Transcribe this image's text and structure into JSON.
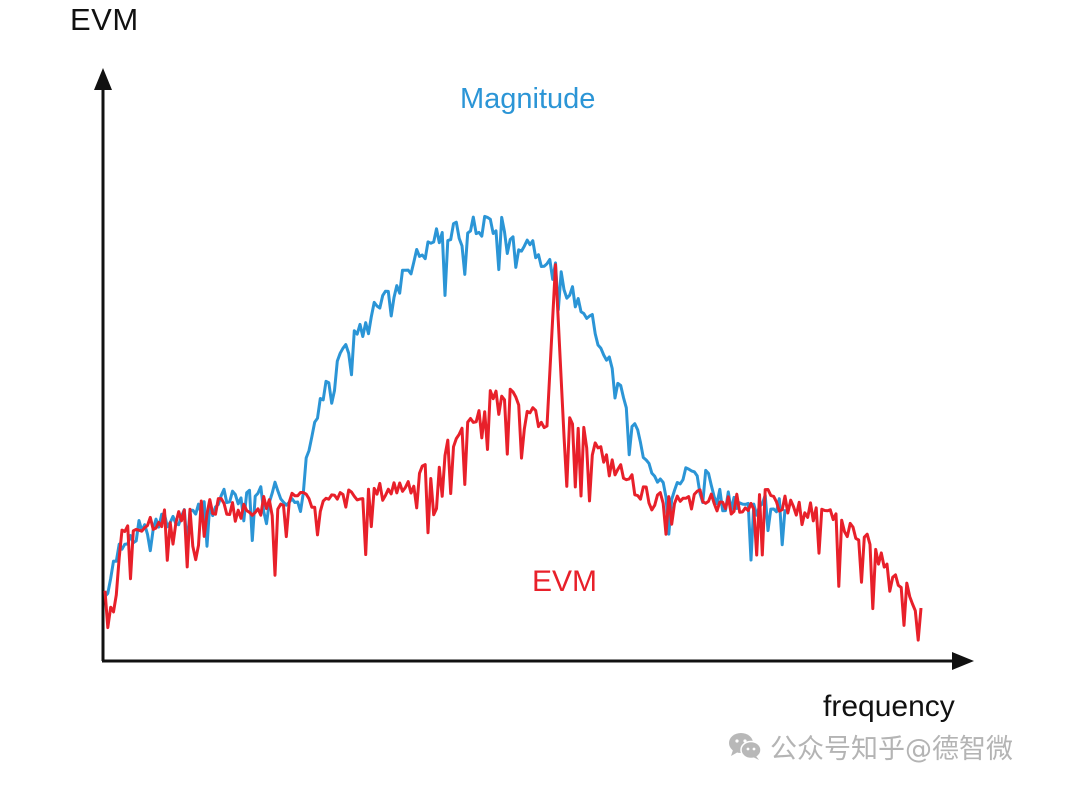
{
  "chart_data": {
    "type": "line",
    "title": "",
    "xlabel": "frequency",
    "ylabel": "EVM",
    "grid": false,
    "legend": "inline labels",
    "axis_ticks": "none (conceptual diagram)",
    "annotations": [
      {
        "text": "Magnitude",
        "color": "#2b95d6",
        "position": "top-center above blue curve"
      },
      {
        "text": "EVM",
        "color": "#e8202a",
        "position": "below red curve center"
      }
    ],
    "x_range": [
      0,
      100
    ],
    "y_range": [
      0,
      100
    ],
    "series": [
      {
        "name": "Magnitude",
        "color": "#2b95d6",
        "description": "Bell-shaped noisy spectrum; low/flat at edges (~30), peaks ~84 at center (x~46-50)",
        "points": [
          [
            0,
            12
          ],
          [
            2,
            23
          ],
          [
            4,
            25
          ],
          [
            6,
            26
          ],
          [
            8,
            27
          ],
          [
            10,
            29
          ],
          [
            12,
            29
          ],
          [
            14,
            31
          ],
          [
            16,
            30
          ],
          [
            18,
            34
          ],
          [
            19,
            28
          ],
          [
            20,
            35
          ],
          [
            21,
            32
          ],
          [
            22,
            30
          ],
          [
            23,
            28
          ],
          [
            24,
            42
          ],
          [
            25,
            47
          ],
          [
            26,
            52
          ],
          [
            27,
            56
          ],
          [
            28,
            58
          ],
          [
            29,
            62
          ],
          [
            30,
            63
          ],
          [
            31,
            66
          ],
          [
            32,
            70
          ],
          [
            33,
            72
          ],
          [
            34,
            71
          ],
          [
            35,
            75
          ],
          [
            36,
            76
          ],
          [
            37,
            78
          ],
          [
            38,
            79
          ],
          [
            39,
            82
          ],
          [
            40,
            80
          ],
          [
            41,
            83
          ],
          [
            42,
            81
          ],
          [
            43,
            84
          ],
          [
            44,
            82
          ],
          [
            45,
            85
          ],
          [
            46,
            83
          ],
          [
            47,
            84
          ],
          [
            48,
            82
          ],
          [
            49,
            80
          ],
          [
            50,
            81
          ],
          [
            51,
            78
          ],
          [
            52,
            77
          ],
          [
            53,
            75
          ],
          [
            54,
            72
          ],
          [
            55,
            70
          ],
          [
            56,
            68
          ],
          [
            57,
            66
          ],
          [
            58,
            62
          ],
          [
            59,
            58
          ],
          [
            60,
            55
          ],
          [
            61,
            50
          ],
          [
            62,
            46
          ],
          [
            63,
            42
          ],
          [
            64,
            38
          ],
          [
            65,
            34
          ],
          [
            66,
            33
          ],
          [
            67,
            31
          ],
          [
            68,
            36
          ],
          [
            69,
            38
          ],
          [
            70,
            34
          ],
          [
            71,
            35
          ],
          [
            72,
            32
          ],
          [
            73,
            30
          ],
          [
            74,
            31
          ],
          [
            75,
            30
          ],
          [
            76,
            29
          ],
          [
            78,
            30
          ],
          [
            80,
            29
          ]
        ]
      },
      {
        "name": "EVM",
        "color": "#e8202a",
        "description": "Noisy baseline ~30 rising to ~52 near center, with a sharp spike to ~76 at x~53, tapering to ~10 at right end",
        "points": [
          [
            0,
            12
          ],
          [
            1,
            8
          ],
          [
            2,
            24
          ],
          [
            4,
            26
          ],
          [
            6,
            27
          ],
          [
            8,
            28
          ],
          [
            10,
            28
          ],
          [
            12,
            29
          ],
          [
            14,
            30
          ],
          [
            16,
            28
          ],
          [
            18,
            30
          ],
          [
            20,
            29
          ],
          [
            22,
            31
          ],
          [
            24,
            30
          ],
          [
            26,
            30
          ],
          [
            28,
            31
          ],
          [
            30,
            31
          ],
          [
            32,
            32
          ],
          [
            34,
            33
          ],
          [
            36,
            34
          ],
          [
            38,
            36
          ],
          [
            40,
            40
          ],
          [
            42,
            44
          ],
          [
            44,
            48
          ],
          [
            46,
            52
          ],
          [
            48,
            50
          ],
          [
            50,
            47
          ],
          [
            52,
            45
          ],
          [
            53,
            76
          ],
          [
            54,
            45
          ],
          [
            56,
            44
          ],
          [
            58,
            40
          ],
          [
            60,
            37
          ],
          [
            62,
            34
          ],
          [
            64,
            31
          ],
          [
            66,
            30
          ],
          [
            68,
            30
          ],
          [
            70,
            31
          ],
          [
            72,
            30
          ],
          [
            74,
            30
          ],
          [
            76,
            30
          ],
          [
            78,
            31
          ],
          [
            80,
            30
          ],
          [
            82,
            29
          ],
          [
            84,
            28
          ],
          [
            86,
            27
          ],
          [
            88,
            25
          ],
          [
            90,
            22
          ],
          [
            92,
            18
          ],
          [
            94,
            14
          ],
          [
            96,
            10
          ]
        ]
      }
    ]
  },
  "labels": {
    "y_axis": "EVM",
    "x_axis": "frequency",
    "magnitude": "Magnitude",
    "evm": "EVM"
  },
  "watermark": {
    "text": "公众号知乎@德智微",
    "icon": "wechat-icon",
    "color": "#b4b4b4"
  },
  "colors": {
    "magnitude": "#2b95d6",
    "evm": "#e8202a",
    "axis": "#111111"
  }
}
